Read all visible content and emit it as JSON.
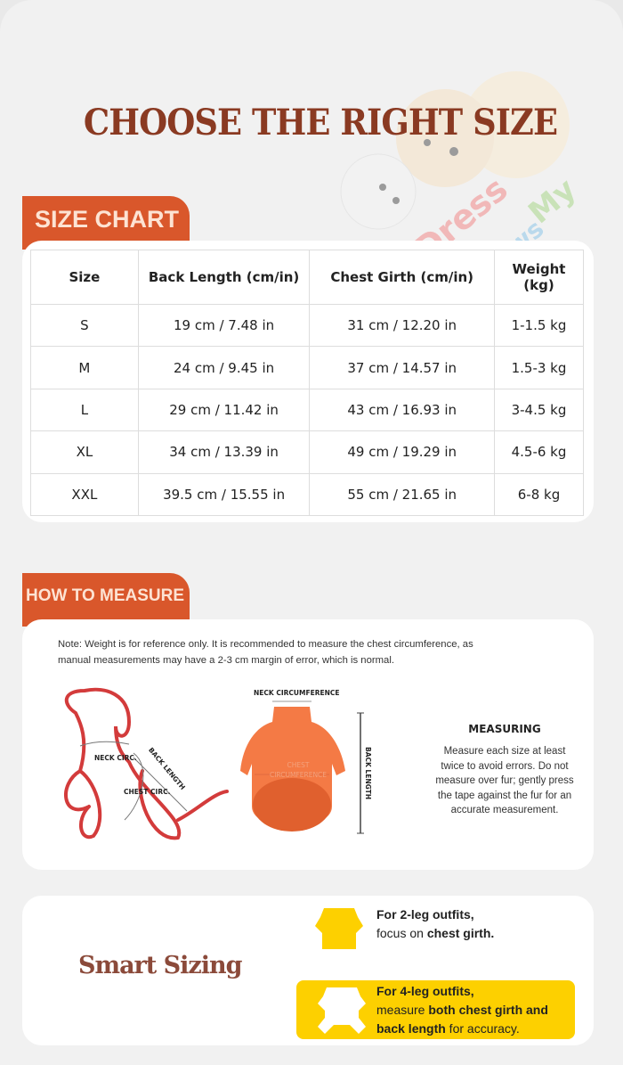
{
  "title": "CHOOSE THE RIGHT SIZE",
  "logo": {
    "text": "Dress My Paws"
  },
  "size_chart": {
    "heading": "SIZE CHART",
    "columns": [
      "Size",
      "Back Length (cm/in)",
      "Chest Girth (cm/in)",
      "Weight (kg)"
    ],
    "rows": [
      [
        "S",
        "19 cm / 7.48 in",
        "31 cm / 12.20 in",
        "1-1.5 kg"
      ],
      [
        "M",
        "24 cm / 9.45 in",
        "37 cm / 14.57 in",
        "1.5-3 kg"
      ],
      [
        "L",
        "29 cm / 11.42 in",
        "43 cm / 16.93 in",
        "3-4.5 kg"
      ],
      [
        "XL",
        "34 cm / 13.39 in",
        "49 cm / 19.29 in",
        "4.5-6 kg"
      ],
      [
        "XXL",
        "39.5 cm / 15.55 in",
        "55 cm / 21.65 in",
        "6-8 kg"
      ]
    ]
  },
  "how_to_measure": {
    "heading": "HOW TO MEASURE",
    "note_line1": "Note: Weight is for reference only. It is recommended to measure the chest circumference, as",
    "note_line2": "manual measurements may have a 2-3 cm margin of error, which is normal.",
    "dog_labels": {
      "neck": "NECK CIRC.",
      "back": "BACK LENGTH",
      "chest": "CHEST CIRC."
    },
    "shirt_labels": {
      "neck": "NECK CIRCUMFERENCE",
      "chest1": "CHEST",
      "chest2": "CIRCUMFERENCE",
      "back": "BACK LENGTH"
    },
    "measuring_title": "MEASURING",
    "measuring_lines": [
      "Measure each size at least",
      "twice to avoid errors. Do not",
      "measure over fur; gently press",
      "the tape against the fur for an",
      "accurate measurement."
    ]
  },
  "smart_sizing": {
    "title": "Smart Sizing",
    "two_leg": {
      "bold": "For 2-leg outfits,",
      "pre": "focus on ",
      "emph": "chest girth."
    },
    "four_leg": {
      "bold": "For 4-leg outfits,",
      "pre": "measure ",
      "emph1": "both chest girth and",
      "emph2": "back length",
      "post": " for accuracy."
    },
    "colors": {
      "yellow": "#fdd000",
      "accent": "#d9572b",
      "title": "#8a3a22"
    }
  }
}
